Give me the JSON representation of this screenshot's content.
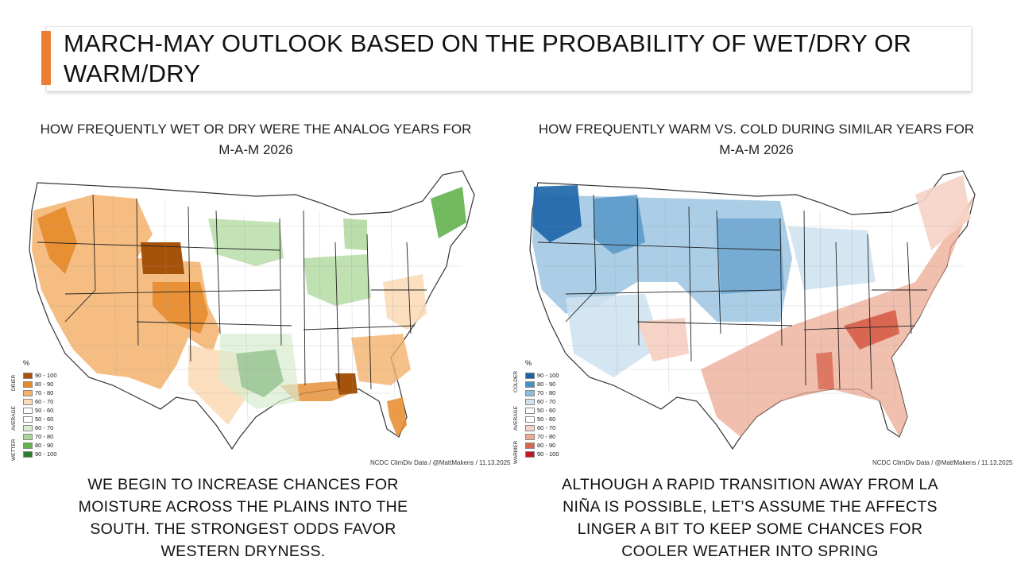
{
  "title": "MARCH-MAY OUTLOOK BASED ON THE PROBABILITY OF WET/DRY OR WARM/DRY",
  "colors": {
    "accent": "#ed7d31"
  },
  "left_panel": {
    "subtitle_line1": "HOW FREQUENTLY WET OR DRY WERE THE ANALOG YEARS FOR",
    "subtitle_line2": "M-A-M 2026",
    "legend": {
      "unit": "%",
      "side_top": "DRIER",
      "side_mid": "AVERAGE",
      "side_bottom": "WETTER",
      "items": [
        {
          "label": "90 - 100",
          "color": "#a5520b"
        },
        {
          "label": "80 - 90",
          "color": "#e58a2a"
        },
        {
          "label": "70 - 80",
          "color": "#f3b26c"
        },
        {
          "label": "60 - 70",
          "color": "#fbdcb8"
        },
        {
          "label": "50 - 60",
          "color": "#ffffff"
        },
        {
          "label": "50 - 60",
          "color": "#ffffff"
        },
        {
          "label": "60 - 70",
          "color": "#d9eccf"
        },
        {
          "label": "70 - 80",
          "color": "#a9d596"
        },
        {
          "label": "80 - 90",
          "color": "#62b24f"
        },
        {
          "label": "90 - 100",
          "color": "#2a7d2a"
        }
      ]
    },
    "credit": "NCDC ClimDiv Data / @MattMakens / 11.13.2025",
    "caption_line1": "WE BEGIN TO INCREASE CHANCES FOR",
    "caption_line2": "MOISTURE ACROSS THE PLAINS INTO THE",
    "caption_line3": "SOUTH. THE STRONGEST ODDS FAVOR",
    "caption_line4": "WESTERN DRYNESS."
  },
  "right_panel": {
    "subtitle_line1": "HOW FREQUENTLY WARM VS. COLD DURING SIMILAR YEARS FOR",
    "subtitle_line2": "M-A-M 2026",
    "legend": {
      "unit": "%",
      "side_top": "COLDER",
      "side_mid": "AVERAGE",
      "side_bottom": "WARMER",
      "items": [
        {
          "label": "90 - 100",
          "color": "#1b64a8"
        },
        {
          "label": "80 - 90",
          "color": "#4a8fc4"
        },
        {
          "label": "70 - 80",
          "color": "#8fbcdd"
        },
        {
          "label": "60 - 70",
          "color": "#cfe3f1"
        },
        {
          "label": "50 - 60",
          "color": "#ffffff"
        },
        {
          "label": "50 - 60",
          "color": "#ffffff"
        },
        {
          "label": "60 - 70",
          "color": "#f6d3c6"
        },
        {
          "label": "70 - 80",
          "color": "#ebaa93"
        },
        {
          "label": "80 - 90",
          "color": "#d96650"
        },
        {
          "label": "90 - 100",
          "color": "#c01b25"
        }
      ]
    },
    "credit": "NCDC ClimDiv Data / @MattMakens / 11.13.2025",
    "caption_line1": "ALTHOUGH A RAPID TRANSITION AWAY FROM LA",
    "caption_line2": "NIÑA IS POSSIBLE, LET’S ASSUME THE AFFECTS",
    "caption_line3": "LINGER A BIT TO KEEP SOME CHANCES FOR",
    "caption_line4": "COOLER WEATHER INTO SPRING"
  }
}
